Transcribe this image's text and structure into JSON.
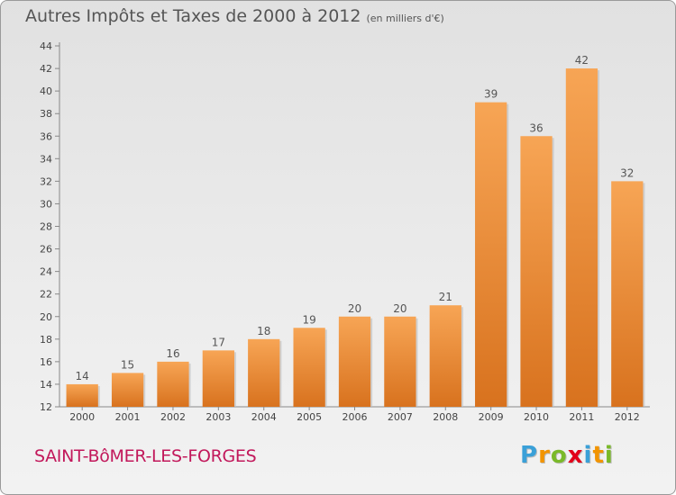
{
  "title": "Autres Impôts et Taxes de 2000 à 2012",
  "subtitle": "(en milliers d'€)",
  "location": "SAINT-BôMER-LES-FORGES",
  "logo": {
    "letters": [
      "P",
      "r",
      "o",
      "x",
      "i",
      "t",
      "i"
    ],
    "colors": [
      "#3aa0d8",
      "#f29400",
      "#7ab929",
      "#e2001a",
      "#3aa0d8",
      "#f29400",
      "#7ab929"
    ]
  },
  "chart_data": {
    "type": "bar",
    "categories": [
      "2000",
      "2001",
      "2002",
      "2003",
      "2004",
      "2005",
      "2006",
      "2007",
      "2008",
      "2009",
      "2010",
      "2011",
      "2012"
    ],
    "values": [
      14,
      15,
      16,
      17,
      18,
      19,
      20,
      20,
      21,
      39,
      36,
      42,
      32
    ],
    "ylim": [
      12,
      44
    ],
    "yticks": [
      12,
      14,
      16,
      18,
      20,
      22,
      24,
      26,
      28,
      30,
      32,
      34,
      36,
      38,
      40,
      42,
      44
    ],
    "grid": false,
    "bar_color_top": "#f7a555",
    "bar_color_bottom": "#d8721e",
    "label_color": "#555555"
  }
}
